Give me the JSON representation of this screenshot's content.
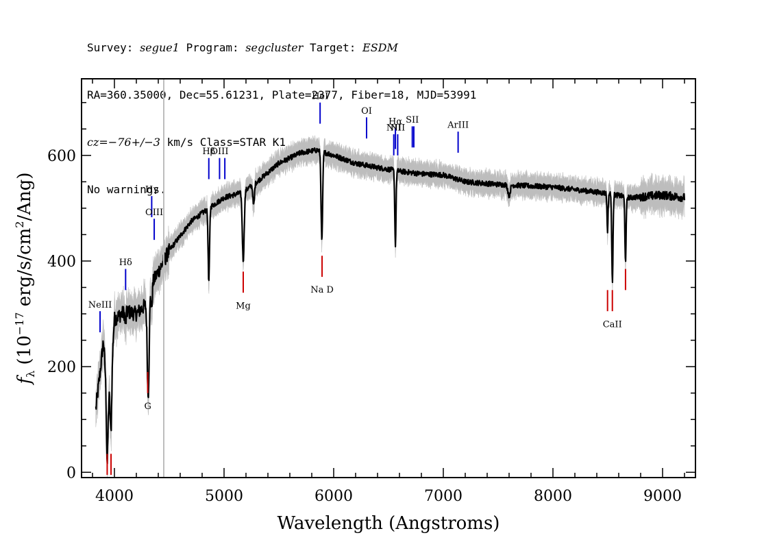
{
  "header": {
    "line1": {
      "survey_label": "Survey: ",
      "survey": "segue1",
      "program_label": " Program: ",
      "program": "segcluster",
      "target_label": " Target: ",
      "target": "ESDM"
    },
    "line2": "RA=360.35000, Dec=55.61231, Plate=2377, Fiber=18, MJD=53991",
    "line3": {
      "cz": "cz=−76+/−3",
      "rest": " km/s Class=STAR K1"
    },
    "line4": "No warnings."
  },
  "colors": {
    "flux": "#000000",
    "error_band": "#bdbdbd",
    "emission": "#0000cc",
    "absorption": "#cc0000",
    "marker_line": "#bdbdbd"
  },
  "chart_data": {
    "type": "line",
    "title": "",
    "xlabel": "Wavelength (Angstroms)",
    "ylabel": "fλ (10^-17 erg/s/cm^2/Ang)",
    "ylabel_parts": {
      "f": "f",
      "sub": "λ",
      "pre": " (10",
      "exp1": "−17",
      "mid": " erg/s/cm",
      "exp2": "2",
      "post": "/Ang)"
    },
    "xlim": [
      3700,
      9300
    ],
    "ylim": [
      -10,
      745
    ],
    "xticks": [
      4000,
      5000,
      6000,
      7000,
      8000,
      9000
    ],
    "yticks": [
      0,
      200,
      400,
      600
    ],
    "x_minor_step": 200,
    "y_minor_step": 50,
    "vertical_marker_x": 4450,
    "spectrum_anchors": [
      [
        3830,
        120
      ],
      [
        3870,
        190
      ],
      [
        3900,
        250
      ],
      [
        3935,
        135
      ],
      [
        3960,
        160
      ],
      [
        4000,
        290
      ],
      [
        4100,
        305
      ],
      [
        4200,
        300
      ],
      [
        4300,
        320
      ],
      [
        4350,
        360
      ],
      [
        4500,
        420
      ],
      [
        4700,
        475
      ],
      [
        4860,
        500
      ],
      [
        5000,
        520
      ],
      [
        5170,
        530
      ],
      [
        5300,
        550
      ],
      [
        5500,
        585
      ],
      [
        5700,
        605
      ],
      [
        5850,
        610
      ],
      [
        6000,
        600
      ],
      [
        6200,
        585
      ],
      [
        6400,
        577
      ],
      [
        6600,
        570
      ],
      [
        6800,
        565
      ],
      [
        7000,
        563
      ],
      [
        7200,
        550
      ],
      [
        7500,
        545
      ],
      [
        8000,
        540
      ],
      [
        8500,
        528
      ],
      [
        8700,
        520
      ],
      [
        9000,
        525
      ],
      [
        9200,
        520
      ]
    ],
    "absorption_features": [
      {
        "x": 3934,
        "depth": 120,
        "width": 10
      },
      {
        "x": 3969,
        "depth": 110,
        "width": 10
      },
      {
        "x": 4101,
        "depth": 25,
        "width": 8
      },
      {
        "x": 4308,
        "depth": 180,
        "width": 12
      },
      {
        "x": 4340,
        "depth": 40,
        "width": 8
      },
      {
        "x": 4861,
        "depth": 140,
        "width": 9
      },
      {
        "x": 5175,
        "depth": 130,
        "width": 12
      },
      {
        "x": 5270,
        "depth": 40,
        "width": 10
      },
      {
        "x": 5892,
        "depth": 170,
        "width": 10
      },
      {
        "x": 6563,
        "depth": 140,
        "width": 8
      },
      {
        "x": 7600,
        "depth": 20,
        "width": 15
      },
      {
        "x": 8498,
        "depth": 70,
        "width": 7
      },
      {
        "x": 8542,
        "depth": 165,
        "width": 8
      },
      {
        "x": 8662,
        "depth": 120,
        "width": 8
      }
    ],
    "emission_lines": [
      {
        "label": "NeIII",
        "x": 3869,
        "y0": 265,
        "y1": 305,
        "label_y": 312
      },
      {
        "label": "Hδ",
        "x": 4102,
        "y0": 345,
        "y1": 385,
        "label_y": 392
      },
      {
        "label": "Hγ",
        "x": 4340,
        "y0": 483,
        "y1": 523,
        "label_y": 530
      },
      {
        "label": "OIII",
        "x": 4363,
        "y0": 440,
        "y1": 480,
        "label_y": 487
      },
      {
        "label": "Hβ",
        "x": 4861,
        "y0": 555,
        "y1": 595,
        "label_y": 602
      },
      {
        "label": "OIII",
        "x": 4959,
        "y0": 555,
        "y1": 595,
        "label_y": 602
      },
      {
        "label": "",
        "x": 5007,
        "y0": 555,
        "y1": 595,
        "label_y": 602
      },
      {
        "label": "HeI",
        "x": 5876,
        "y0": 660,
        "y1": 700,
        "label_y": 707
      },
      {
        "label": "OI",
        "x": 6300,
        "y0": 632,
        "y1": 672,
        "label_y": 679
      },
      {
        "label": "NII",
        "x": 6548,
        "y0": 600,
        "y1": 640,
        "label_y": 647
      },
      {
        "label": "Hα",
        "x": 6563,
        "y0": 612,
        "y1": 652,
        "label_y": 659
      },
      {
        "label": "NII",
        "x": 6584,
        "y0": 600,
        "y1": 640,
        "label_y": 647
      },
      {
        "label": "SII",
        "x": 6717,
        "y0": 615,
        "y1": 655,
        "label_y": 662
      },
      {
        "label": "",
        "x": 6731,
        "y0": 615,
        "y1": 655,
        "label_y": 662
      },
      {
        "label": "ArIII",
        "x": 7135,
        "y0": 605,
        "y1": 645,
        "label_y": 652
      }
    ],
    "absorption_lines": [
      {
        "label": "",
        "x": 3934,
        "y0": -5,
        "y1": 35
      },
      {
        "label": "",
        "x": 3969,
        "y0": -5,
        "y1": 35
      },
      {
        "label": "G",
        "x": 4304,
        "y0": 150,
        "y1": 190,
        "label_y": 120
      },
      {
        "label": "Mg",
        "x": 5175,
        "y0": 340,
        "y1": 380,
        "label_y": 310
      },
      {
        "label": "Na D",
        "x": 5894,
        "y0": 370,
        "y1": 410,
        "label_y": 340
      },
      {
        "label": "CaII",
        "x": 8542,
        "y0": 305,
        "y1": 345,
        "label_y": 275
      },
      {
        "label": "",
        "x": 8498,
        "y0": 305,
        "y1": 345
      },
      {
        "label": "",
        "x": 8662,
        "y0": 345,
        "y1": 385
      }
    ]
  }
}
